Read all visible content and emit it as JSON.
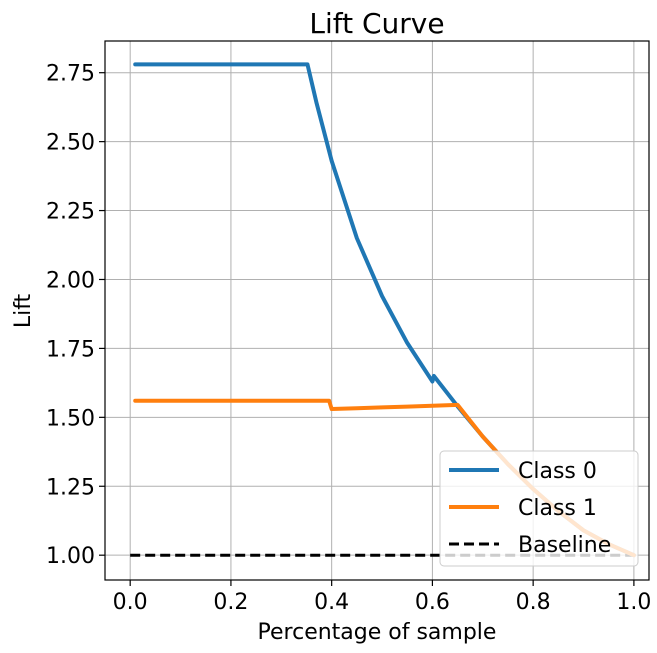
{
  "chart_data": {
    "type": "line",
    "title": "Lift Curve",
    "xlabel": "Percentage of sample",
    "ylabel": "Lift",
    "xlim": [
      -0.05,
      1.03
    ],
    "ylim": [
      0.91,
      2.865
    ],
    "xticks": [
      0.0,
      0.2,
      0.4,
      0.6,
      0.8,
      1.0
    ],
    "xtick_labels": [
      "0.0",
      "0.2",
      "0.4",
      "0.6",
      "0.8",
      "1.0"
    ],
    "yticks": [
      1.0,
      1.25,
      1.5,
      1.75,
      2.0,
      2.25,
      2.5,
      2.75
    ],
    "ytick_labels": [
      "1.00",
      "1.25",
      "1.50",
      "1.75",
      "2.00",
      "2.25",
      "2.50",
      "2.75"
    ],
    "grid": true,
    "legend_position": "lower-right",
    "series": [
      {
        "name": "Class 0",
        "color": "#1f77b4",
        "style": "solid",
        "x": [
          0.01,
          0.05,
          0.1,
          0.15,
          0.2,
          0.25,
          0.3,
          0.35,
          0.352,
          0.37,
          0.4,
          0.45,
          0.5,
          0.55,
          0.6,
          0.6,
          0.603,
          0.65,
          0.7,
          0.75,
          0.8,
          0.85,
          0.9,
          0.95,
          1.0
        ],
        "y": [
          2.78,
          2.78,
          2.78,
          2.78,
          2.78,
          2.78,
          2.78,
          2.78,
          2.78,
          2.64,
          2.43,
          2.15,
          1.94,
          1.77,
          1.63,
          1.63,
          1.65,
          1.54,
          1.43,
          1.33,
          1.24,
          1.16,
          1.09,
          1.04,
          1.0
        ]
      },
      {
        "name": "Class 1",
        "color": "#ff7f0e",
        "style": "solid",
        "x": [
          0.01,
          0.1,
          0.2,
          0.3,
          0.39,
          0.395,
          0.4,
          0.45,
          0.5,
          0.55,
          0.6,
          0.65,
          0.7,
          0.75,
          0.8,
          0.85,
          0.9,
          0.95,
          1.0
        ],
        "y": [
          1.56,
          1.56,
          1.56,
          1.56,
          1.56,
          1.56,
          1.53,
          1.533,
          1.536,
          1.539,
          1.542,
          1.545,
          1.43,
          1.33,
          1.24,
          1.16,
          1.09,
          1.04,
          1.0
        ]
      },
      {
        "name": "Baseline",
        "color": "#000000",
        "style": "dashed",
        "x": [
          0.0,
          1.0
        ],
        "y": [
          1.0,
          1.0
        ]
      }
    ]
  }
}
